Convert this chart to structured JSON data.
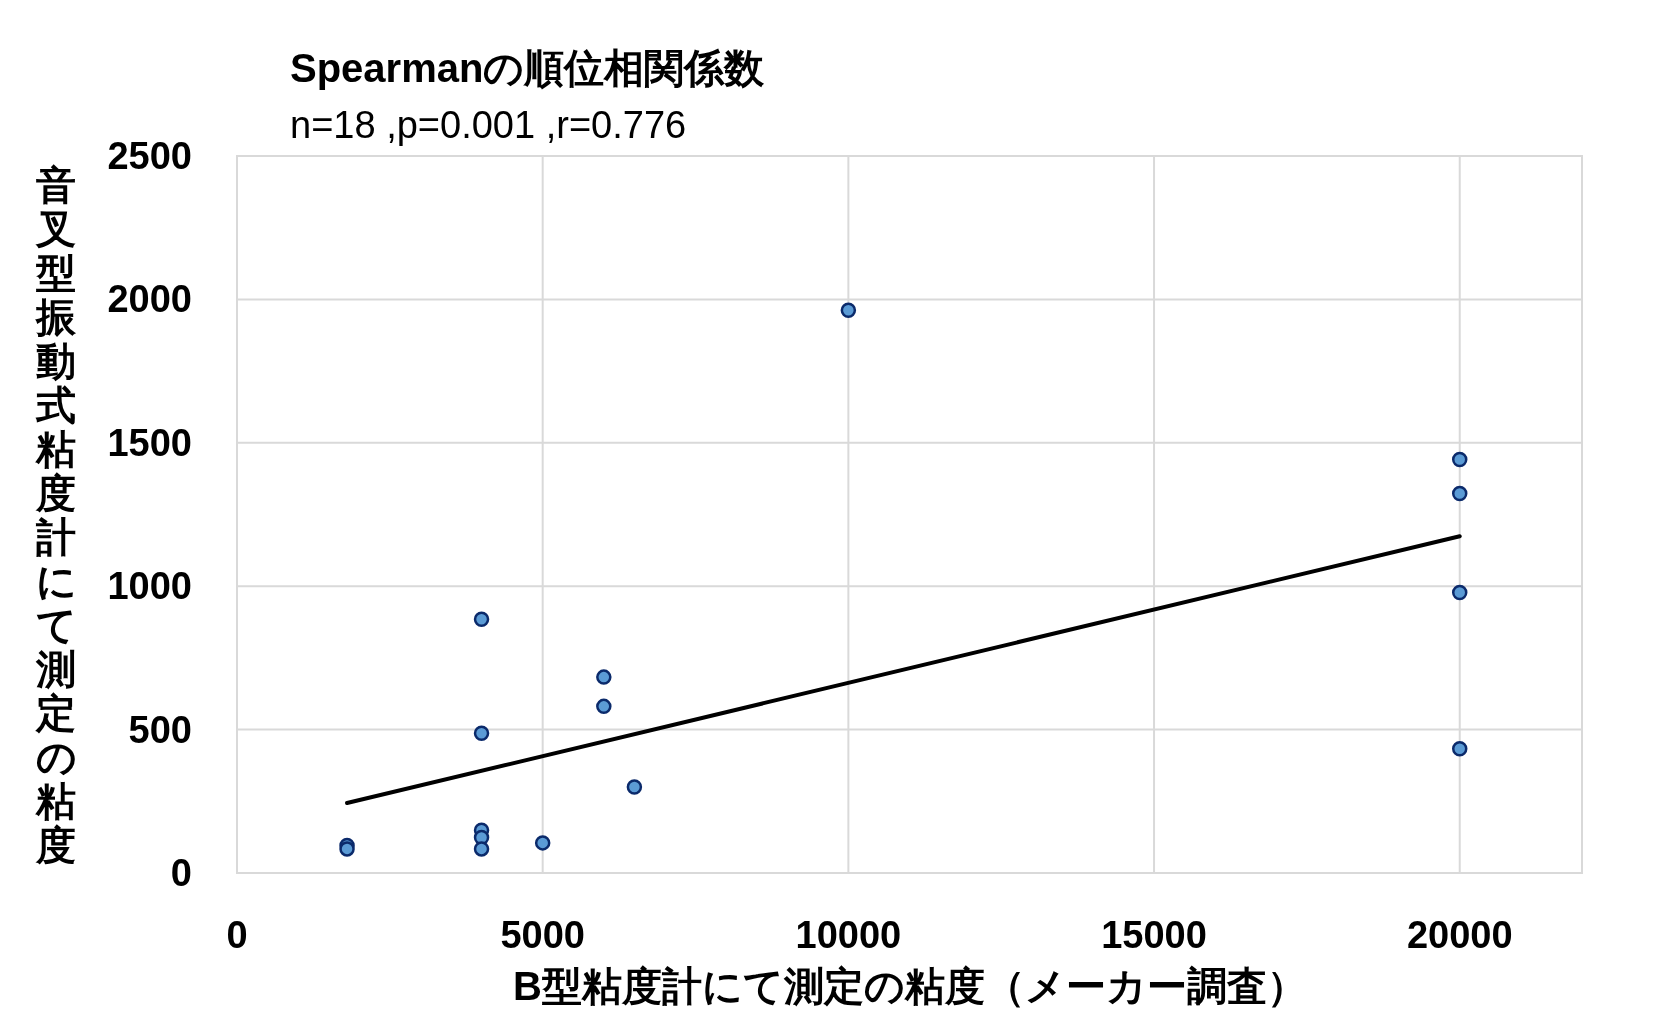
{
  "chart_data": {
    "type": "scatter",
    "title": "Spearmanの順位相関係数",
    "subtitle": "n=18 ,p=0.001 ,r=0.776",
    "xlabel": "B型粘度計にて測定の粘度（メーカー調査）",
    "ylabel": "音叉型振動式粘度計にて測定の粘度",
    "series": [
      {
        "type": "line",
        "color": "#000000",
        "marker": "none",
        "x": [
          1800,
          20000
        ],
        "values": [
          244,
          1174
        ]
      },
      {
        "color": "#5b9bd5",
        "marker": "circle",
        "x": [
          1800,
          1800,
          4000,
          4000,
          4000,
          4000,
          4000,
          5000,
          6000,
          6000,
          6500,
          10000,
          20000,
          20000,
          20000,
          20000
        ],
        "values": [
          96,
          84,
          885,
          487,
          149,
          124,
          84,
          105,
          683,
          581,
          300,
          1962,
          1442,
          1323,
          978,
          433
        ]
      }
    ],
    "xlim": [
      0,
      22000
    ],
    "xticks": [
      0,
      5000,
      10000,
      15000,
      20000
    ],
    "ylim": [
      0,
      2500
    ],
    "yticks": [
      0,
      500,
      1000,
      1500,
      2000,
      2500
    ],
    "grid": true,
    "legend": false
  }
}
